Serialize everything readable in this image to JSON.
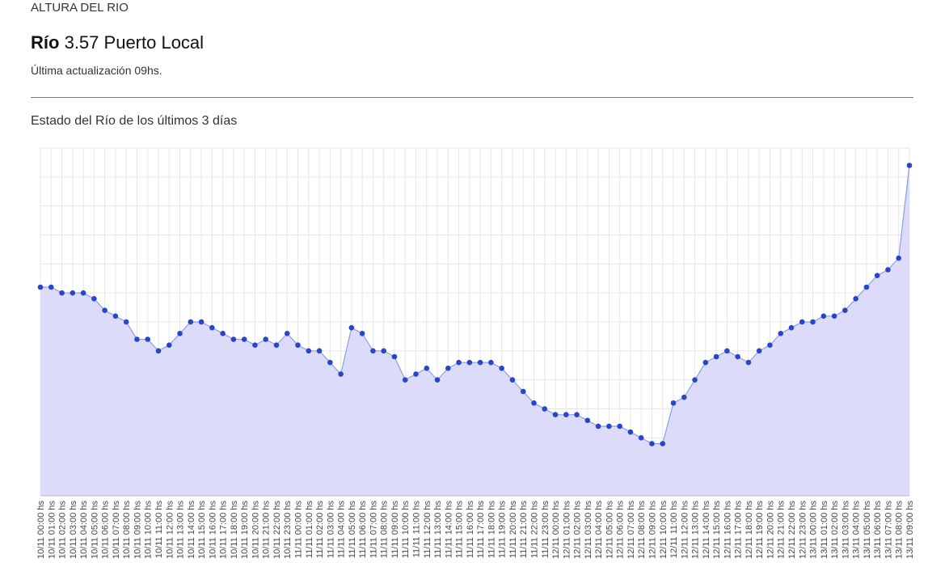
{
  "header": {
    "section_label": "ALTURA DEL RIO",
    "river_label": "Río",
    "river_value": "3.57",
    "location": "Puerto Local",
    "update_text": "Última actualización 09hs."
  },
  "chart_title": "Estado del Río de los últimos 3 días",
  "colors": {
    "area_fill": "#dcdcfa",
    "line": "#8f9ee0",
    "point": "#2a45c8",
    "grid": "#e6e6e6"
  },
  "chart_data": {
    "type": "area",
    "title": "Estado del Río de los últimos 3 días",
    "xlabel": "",
    "ylabel": "",
    "grid": true,
    "y_tick_labels_shown": false,
    "ylim": [
      0,
      12
    ],
    "categories": [
      "10/11 00:00 hs",
      "10/11 01:00 hs",
      "10/11 02:00 hs",
      "10/11 03:00 hs",
      "10/11 04:00 hs",
      "10/11 05:00 hs",
      "10/11 06:00 hs",
      "10/11 07:00 hs",
      "10/11 08:00 hs",
      "10/11 09:00 hs",
      "10/11 10:00 hs",
      "10/11 11:00 hs",
      "10/11 12:00 hs",
      "10/11 13:00 hs",
      "10/11 14:00 hs",
      "10/11 15:00 hs",
      "10/11 16:00 hs",
      "10/11 17:00 hs",
      "10/11 18:00 hs",
      "10/11 19:00 hs",
      "10/11 20:00 hs",
      "10/11 21:00 hs",
      "10/11 22:00 hs",
      "10/11 23:00 hs",
      "11/11 00:00 hs",
      "11/11 01:00 hs",
      "11/11 02:00 hs",
      "11/11 03:00 hs",
      "11/11 04:00 hs",
      "11/11 05:00 hs",
      "11/11 06:00 hs",
      "11/11 07:00 hs",
      "11/11 08:00 hs",
      "11/11 09:00 hs",
      "11/11 10:00 hs",
      "11/11 11:00 hs",
      "11/11 12:00 hs",
      "11/11 13:00 hs",
      "11/11 14:00 hs",
      "11/11 15:00 hs",
      "11/11 16:00 hs",
      "11/11 17:00 hs",
      "11/11 18:00 hs",
      "11/11 19:00 hs",
      "11/11 20:00 hs",
      "11/11 21:00 hs",
      "11/11 22:00 hs",
      "11/11 23:00 hs",
      "12/11 00:00 hs",
      "12/11 01:00 hs",
      "12/11 02:00 hs",
      "12/11 03:00 hs",
      "12/11 04:00 hs",
      "12/11 05:00 hs",
      "12/11 06:00 hs",
      "12/11 07:00 hs",
      "12/11 08:00 hs",
      "12/11 09:00 hs",
      "12/11 10:00 hs",
      "12/11 11:00 hs",
      "12/11 12:00 hs",
      "12/11 13:00 hs",
      "12/11 14:00 hs",
      "12/11 15:00 hs",
      "12/11 16:00 hs",
      "12/11 17:00 hs",
      "12/11 18:00 hs",
      "12/11 19:00 hs",
      "12/11 20:00 hs",
      "12/11 21:00 hs",
      "12/11 22:00 hs",
      "12/11 23:00 hs",
      "13/11 00:00 hs",
      "13/11 01:00 hs",
      "13/11 02:00 hs",
      "13/11 03:00 hs",
      "13/11 04:00 hs",
      "13/11 05:00 hs",
      "13/11 06:00 hs",
      "13/11 07:00 hs",
      "13/11 08:00 hs",
      "13/11 09:00 hs"
    ],
    "series": [
      {
        "values": [
          7.2,
          7.2,
          7.0,
          7.0,
          7.0,
          6.8,
          6.4,
          6.2,
          6.0,
          5.4,
          5.4,
          5.0,
          5.2,
          5.6,
          6.0,
          6.0,
          5.8,
          5.6,
          5.4,
          5.4,
          5.2,
          5.4,
          5.2,
          5.6,
          5.2,
          5.0,
          5.0,
          4.6,
          4.2,
          5.8,
          5.6,
          5.0,
          5.0,
          4.8,
          4.0,
          4.2,
          4.4,
          4.0,
          4.4,
          4.6,
          4.6,
          4.6,
          4.6,
          4.4,
          4.0,
          3.6,
          3.2,
          3.0,
          2.8,
          2.8,
          2.8,
          2.6,
          2.4,
          2.4,
          2.4,
          2.2,
          2.0,
          1.8,
          1.8,
          3.2,
          3.4,
          4.0,
          4.6,
          4.8,
          5.0,
          4.8,
          4.6,
          5.0,
          5.2,
          5.6,
          5.8,
          6.0,
          6.0,
          6.2,
          6.2,
          6.4,
          6.8,
          7.2,
          7.6,
          7.8,
          8.2,
          11.4
        ]
      }
    ]
  }
}
